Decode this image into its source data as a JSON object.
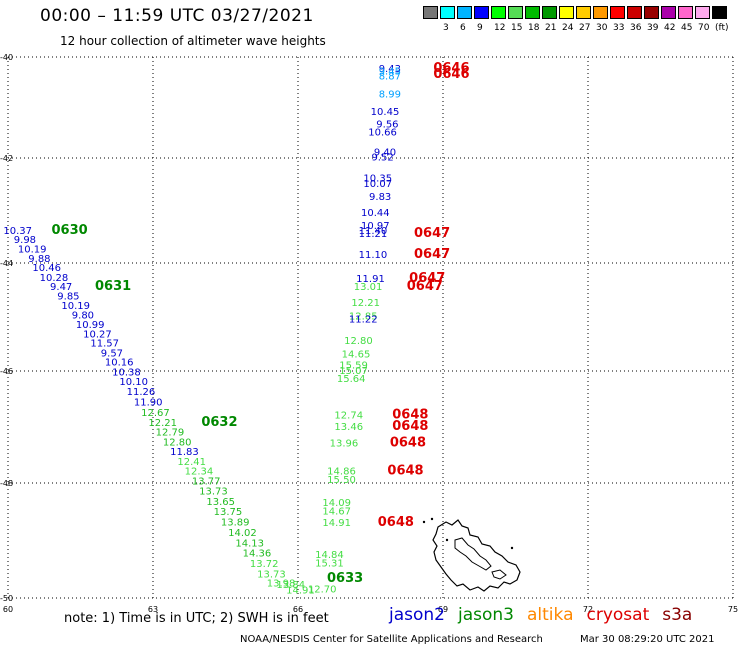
{
  "header": {
    "title": "00:00 – 11:59 UTC 03/27/2021",
    "subtitle": "12 hour collection of altimeter wave heights"
  },
  "colorbar": {
    "unit": "(ft)",
    "swatches": [
      {
        "color": "#777777",
        "label": ""
      },
      {
        "color": "#00ffff",
        "label": "3"
      },
      {
        "color": "#00b4ff",
        "label": "6"
      },
      {
        "color": "#0000ff",
        "label": "9"
      },
      {
        "color": "#00ff00",
        "label": "12"
      },
      {
        "color": "#55dd55",
        "label": "15"
      },
      {
        "color": "#00bb00",
        "label": "18"
      },
      {
        "color": "#009900",
        "label": "21"
      },
      {
        "color": "#ffff00",
        "label": "24"
      },
      {
        "color": "#ffcc00",
        "label": "27"
      },
      {
        "color": "#ff9900",
        "label": "30"
      },
      {
        "color": "#ff0000",
        "label": "33"
      },
      {
        "color": "#cc0000",
        "label": "36"
      },
      {
        "color": "#990000",
        "label": "39"
      },
      {
        "color": "#aa00aa",
        "label": "42"
      },
      {
        "color": "#ff66cc",
        "label": "45"
      },
      {
        "color": "#ffaaee",
        "label": "70"
      },
      {
        "color": "#000000",
        "label": ""
      }
    ]
  },
  "map": {
    "lon_range": [
      60,
      75
    ],
    "lat_range": [
      -40,
      -50
    ],
    "lon_ticks": [
      "60",
      "63",
      "66",
      "69",
      "72",
      "75"
    ],
    "lat_ticks": [
      "-40",
      "-42",
      "-44",
      "-46",
      "-48",
      "-50"
    ],
    "gridlines": "dotted"
  },
  "colors": {
    "jason2": "#0000cc",
    "jason3": "#008800",
    "altika": "#ff8800",
    "cryosat": "#dd0000",
    "s3a": "#880000",
    "light_blue": "#00a0ff",
    "light_green": "#44dd44",
    "med_green": "#22bb22",
    "gray_green": "#66bb66"
  },
  "tracks": {
    "northeast": [
      {
        "text": "9.43",
        "lon": 67.9,
        "lat": -40.3,
        "c": "jason2"
      },
      {
        "text": "9.45",
        "lon": 67.9,
        "lat": -40.35,
        "c": "light_blue"
      },
      {
        "text": "8.87",
        "lon": 67.9,
        "lat": -40.45,
        "c": "light_blue"
      },
      {
        "text": "8.99",
        "lon": 67.9,
        "lat": -40.8,
        "c": "light_blue"
      },
      {
        "text": "10.45",
        "lon": 67.8,
        "lat": -41.15,
        "c": "jason2"
      },
      {
        "text": "9.56",
        "lon": 67.85,
        "lat": -41.4,
        "c": "jason2"
      },
      {
        "text": "10.66",
        "lon": 67.75,
        "lat": -41.55,
        "c": "jason2"
      },
      {
        "text": "9.40",
        "lon": 67.8,
        "lat": -41.95,
        "c": "jason2"
      },
      {
        "text": "9.52",
        "lon": 67.75,
        "lat": -42.05,
        "c": "jason2"
      },
      {
        "text": "10.35",
        "lon": 67.65,
        "lat": -42.45,
        "c": "jason2"
      },
      {
        "text": "10.07",
        "lon": 67.65,
        "lat": -42.55,
        "c": "jason2"
      },
      {
        "text": "9.83",
        "lon": 67.7,
        "lat": -42.8,
        "c": "jason2"
      },
      {
        "text": "10.44",
        "lon": 67.6,
        "lat": -43.1,
        "c": "jason2"
      },
      {
        "text": "10.97",
        "lon": 67.6,
        "lat": -43.35,
        "c": "jason2"
      },
      {
        "text": "11.40",
        "lon": 67.55,
        "lat": -43.45,
        "c": "jason2"
      },
      {
        "text": "11.21",
        "lon": 67.55,
        "lat": -43.5,
        "c": "jason2"
      },
      {
        "text": "11.10",
        "lon": 67.55,
        "lat": -43.9,
        "c": "jason2"
      },
      {
        "text": "11.91",
        "lon": 67.5,
        "lat": -44.35,
        "c": "jason2"
      },
      {
        "text": "13.01",
        "lon": 67.45,
        "lat": -44.5,
        "c": "light_green"
      },
      {
        "text": "12.21",
        "lon": 67.4,
        "lat": -44.8,
        "c": "light_green"
      },
      {
        "text": "12.85",
        "lon": 67.35,
        "lat": -45.05,
        "c": "light_green"
      },
      {
        "text": "11.22",
        "lon": 67.35,
        "lat": -45.1,
        "c": "jason2"
      },
      {
        "text": "12.80",
        "lon": 67.25,
        "lat": -45.5,
        "c": "light_green"
      },
      {
        "text": "14.65",
        "lon": 67.2,
        "lat": -45.75,
        "c": "light_green"
      },
      {
        "text": "15.59",
        "lon": 67.15,
        "lat": -45.95,
        "c": "light_green"
      },
      {
        "text": "15.07",
        "lon": 67.15,
        "lat": -46.05,
        "c": "light_green"
      },
      {
        "text": "15.64",
        "lon": 67.1,
        "lat": -46.2,
        "c": "light_green"
      },
      {
        "text": "12.74",
        "lon": 67.05,
        "lat": -46.85,
        "c": "light_green"
      },
      {
        "text": "13.46",
        "lon": 67.05,
        "lat": -47.05,
        "c": "light_green"
      },
      {
        "text": "13.96",
        "lon": 66.95,
        "lat": -47.35,
        "c": "light_green"
      },
      {
        "text": "14.86",
        "lon": 66.9,
        "lat": -47.85,
        "c": "light_green"
      },
      {
        "text": "15.50",
        "lon": 66.9,
        "lat": -48.0,
        "c": "light_green"
      },
      {
        "text": "14.09",
        "lon": 66.8,
        "lat": -48.4,
        "c": "light_green"
      },
      {
        "text": "14.67",
        "lon": 66.8,
        "lat": -48.55,
        "c": "light_green"
      },
      {
        "text": "14.91",
        "lon": 66.8,
        "lat": -48.75,
        "c": "light_green"
      },
      {
        "text": "14.84",
        "lon": 66.65,
        "lat": -49.3,
        "c": "light_green"
      },
      {
        "text": "15.31",
        "lon": 66.65,
        "lat": -49.45,
        "c": "light_green"
      },
      {
        "text": "12.70",
        "lon": 66.5,
        "lat": -49.9,
        "c": "light_green"
      }
    ],
    "southwest": [
      {
        "text": "10.37",
        "lon": 60.2,
        "lat": -43.45,
        "c": "jason2"
      },
      {
        "text": "9.98",
        "lon": 60.35,
        "lat": -43.62,
        "c": "jason2"
      },
      {
        "text": "10.19",
        "lon": 60.5,
        "lat": -43.8,
        "c": "jason2"
      },
      {
        "text": "9.88",
        "lon": 60.65,
        "lat": -43.98,
        "c": "jason2"
      },
      {
        "text": "10.46",
        "lon": 60.8,
        "lat": -44.15,
        "c": "jason2"
      },
      {
        "text": "10.28",
        "lon": 60.95,
        "lat": -44.33,
        "c": "jason2"
      },
      {
        "text": "9.47",
        "lon": 61.1,
        "lat": -44.5,
        "c": "jason2"
      },
      {
        "text": "9.85",
        "lon": 61.25,
        "lat": -44.68,
        "c": "jason2"
      },
      {
        "text": "10.19",
        "lon": 61.4,
        "lat": -44.85,
        "c": "jason2"
      },
      {
        "text": "9.80",
        "lon": 61.55,
        "lat": -45.03,
        "c": "jason2"
      },
      {
        "text": "10.99",
        "lon": 61.7,
        "lat": -45.2,
        "c": "jason2"
      },
      {
        "text": "10.27",
        "lon": 61.85,
        "lat": -45.38,
        "c": "jason2"
      },
      {
        "text": "11.57",
        "lon": 62.0,
        "lat": -45.55,
        "c": "jason2"
      },
      {
        "text": "9.57",
        "lon": 62.15,
        "lat": -45.73,
        "c": "jason2"
      },
      {
        "text": "10.16",
        "lon": 62.3,
        "lat": -45.9,
        "c": "jason2"
      },
      {
        "text": "10.38",
        "lon": 62.45,
        "lat": -46.08,
        "c": "jason2"
      },
      {
        "text": "10.10",
        "lon": 62.6,
        "lat": -46.25,
        "c": "jason2"
      },
      {
        "text": "11.26",
        "lon": 62.75,
        "lat": -46.43,
        "c": "jason2"
      },
      {
        "text": "11.90",
        "lon": 62.9,
        "lat": -46.62,
        "c": "jason2"
      },
      {
        "text": "12.67",
        "lon": 63.05,
        "lat": -46.8,
        "c": "med_green"
      },
      {
        "text": "12.21",
        "lon": 63.2,
        "lat": -46.98,
        "c": "med_green"
      },
      {
        "text": "12.79",
        "lon": 63.35,
        "lat": -47.15,
        "c": "med_green"
      },
      {
        "text": "12.80",
        "lon": 63.5,
        "lat": -47.33,
        "c": "med_green"
      },
      {
        "text": "11.83",
        "lon": 63.65,
        "lat": -47.5,
        "c": "jason2"
      },
      {
        "text": "12.41",
        "lon": 63.8,
        "lat": -47.68,
        "c": "light_green"
      },
      {
        "text": "12.34",
        "lon": 63.95,
        "lat": -47.85,
        "c": "light_green"
      },
      {
        "text": "13.77",
        "lon": 64.1,
        "lat": -48.03,
        "c": "med_green"
      },
      {
        "text": "13.73",
        "lon": 64.25,
        "lat": -48.2,
        "c": "med_green"
      },
      {
        "text": "13.65",
        "lon": 64.4,
        "lat": -48.38,
        "c": "med_green"
      },
      {
        "text": "13.75",
        "lon": 64.55,
        "lat": -48.56,
        "c": "med_green"
      },
      {
        "text": "13.89",
        "lon": 64.7,
        "lat": -48.74,
        "c": "med_green"
      },
      {
        "text": "14.02",
        "lon": 64.85,
        "lat": -48.92,
        "c": "med_green"
      },
      {
        "text": "14.13",
        "lon": 65.0,
        "lat": -49.1,
        "c": "med_green"
      },
      {
        "text": "14.36",
        "lon": 65.15,
        "lat": -49.28,
        "c": "med_green"
      },
      {
        "text": "13.72",
        "lon": 65.3,
        "lat": -49.46,
        "c": "light_green"
      },
      {
        "text": "13.73",
        "lon": 65.45,
        "lat": -49.64,
        "c": "light_green"
      },
      {
        "text": "13.98",
        "lon": 65.65,
        "lat": -49.8,
        "c": "light_green"
      },
      {
        "text": "13.84",
        "lon": 65.85,
        "lat": -49.83,
        "c": "light_green"
      },
      {
        "text": "14.91",
        "lon": 66.05,
        "lat": -49.92,
        "c": "light_green"
      }
    ]
  },
  "time_labels": [
    {
      "text": "0646",
      "lon": 68.8,
      "lat": -40.3,
      "c": "cryosat"
    },
    {
      "text": "0646",
      "lon": 68.8,
      "lat": -40.42,
      "c": "cryosat"
    },
    {
      "text": "0647",
      "lon": 68.4,
      "lat": -43.5,
      "c": "cryosat"
    },
    {
      "text": "0647",
      "lon": 68.4,
      "lat": -43.9,
      "c": "cryosat"
    },
    {
      "text": "0647",
      "lon": 68.3,
      "lat": -44.35,
      "c": "cryosat"
    },
    {
      "text": "0647",
      "lon": 68.25,
      "lat": -44.5,
      "c": "cryosat"
    },
    {
      "text": "0648",
      "lon": 67.95,
      "lat": -46.85,
      "c": "cryosat"
    },
    {
      "text": "0648",
      "lon": 67.95,
      "lat": -47.05,
      "c": "cryosat"
    },
    {
      "text": "0648",
      "lon": 67.9,
      "lat": -47.35,
      "c": "cryosat"
    },
    {
      "text": "0648",
      "lon": 67.85,
      "lat": -47.85,
      "c": "cryosat"
    },
    {
      "text": "0648",
      "lon": 67.65,
      "lat": -48.75,
      "c": "cryosat"
    },
    {
      "text": "0630",
      "lon": 60.9,
      "lat": -43.45,
      "c": "jason3"
    },
    {
      "text": "0631",
      "lon": 61.8,
      "lat": -44.5,
      "c": "jason3"
    },
    {
      "text": "0632",
      "lon": 64.0,
      "lat": -46.98,
      "c": "jason3"
    },
    {
      "text": "0633",
      "lon": 66.6,
      "lat": -49.72,
      "c": "jason3"
    }
  ],
  "legend": {
    "note": "note:  1) Time is in UTC;  2) SWH is in feet",
    "missions": [
      {
        "name": "jason2",
        "c": "jason2"
      },
      {
        "name": "jason3",
        "c": "jason3"
      },
      {
        "name": "altika",
        "c": "altika"
      },
      {
        "name": "cryosat",
        "c": "cryosat"
      },
      {
        "name": "s3a",
        "c": "s3a"
      }
    ]
  },
  "footer": {
    "credit": "NOAA/NESDIS Center for Satellite Applications and Research",
    "timestamp": "Mar 30 08:29:20 UTC 2021"
  }
}
